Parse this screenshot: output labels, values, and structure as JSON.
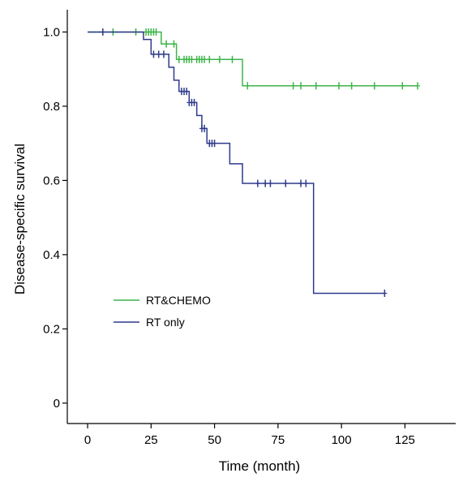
{
  "chart_data": {
    "type": "line",
    "title": "",
    "xlabel": "Time (month)",
    "ylabel": "Disease-specific survival",
    "xlim": [
      -8,
      145
    ],
    "ylim": [
      -0.055,
      1.06
    ],
    "xticks": [
      0,
      25,
      50,
      75,
      100,
      125
    ],
    "yticks": [
      0,
      0.2,
      0.4,
      0.6,
      0.8,
      1.0
    ],
    "ytick_labels": [
      "0",
      "0.2",
      "0.4",
      "0.6",
      "0.8",
      "1.0"
    ],
    "legend_position": "lower-left",
    "series": [
      {
        "name": "RT&CHEMO",
        "color": "#3db44a",
        "steps": [
          [
            0,
            1.0
          ],
          [
            29,
            0.968
          ],
          [
            35,
            0.926
          ],
          [
            58,
            0.926
          ],
          [
            61,
            0.855
          ],
          [
            130,
            0.855
          ]
        ],
        "censors": [
          10,
          19,
          23,
          24,
          25,
          26,
          27,
          31,
          34,
          36,
          38,
          39,
          40,
          41,
          43,
          44,
          45,
          46,
          48,
          52,
          57,
          63,
          81,
          84,
          90,
          99,
          104,
          113,
          124,
          130
        ]
      },
      {
        "name": "RT only",
        "color": "#2e3a8c",
        "steps": [
          [
            0,
            1.0
          ],
          [
            22,
            0.98
          ],
          [
            25,
            0.94
          ],
          [
            32,
            0.905
          ],
          [
            34,
            0.87
          ],
          [
            36,
            0.84
          ],
          [
            40,
            0.81
          ],
          [
            43,
            0.775
          ],
          [
            45,
            0.74
          ],
          [
            47,
            0.7
          ],
          [
            56,
            0.645
          ],
          [
            61,
            0.592
          ],
          [
            89,
            0.592
          ],
          [
            89,
            0.296
          ],
          [
            117,
            0.296
          ]
        ],
        "censors": [
          6,
          26,
          28,
          30,
          37,
          38,
          39,
          40,
          41,
          42,
          45,
          46,
          48,
          49,
          50,
          67,
          70,
          72,
          78,
          84,
          86,
          117
        ]
      }
    ]
  }
}
